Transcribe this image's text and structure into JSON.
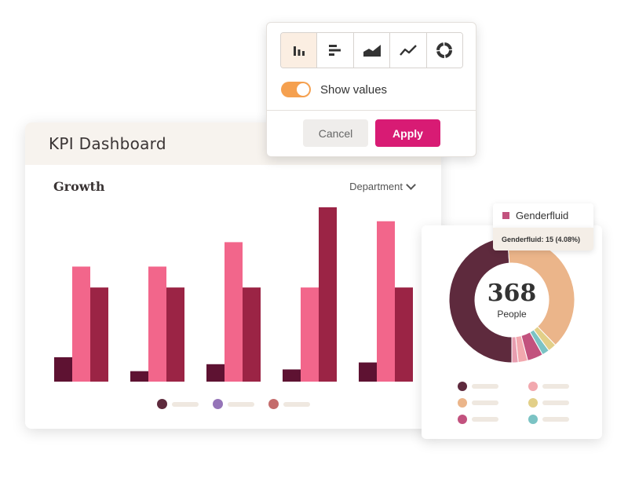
{
  "dashboard": {
    "title": "KPI Dashboard",
    "chart_title": "Growth",
    "filter_label": "Department"
  },
  "popover": {
    "chart_types": [
      {
        "name": "column",
        "icon": "column-chart-icon",
        "active": true
      },
      {
        "name": "bar",
        "icon": "bar-chart-icon",
        "active": false
      },
      {
        "name": "area",
        "icon": "area-chart-icon",
        "active": false
      },
      {
        "name": "line",
        "icon": "line-chart-icon",
        "active": false
      },
      {
        "name": "donut",
        "icon": "donut-chart-icon",
        "active": false
      }
    ],
    "toggle_label": "Show values",
    "toggle_on": true,
    "cancel_label": "Cancel",
    "apply_label": "Apply"
  },
  "donut_card": {
    "total": "368",
    "total_label": "People",
    "legend_colors": [
      "#5e2a3d",
      "#f2a8ae",
      "#ebb58a",
      "#e2cf88",
      "#c2527e",
      "#7bc3c4"
    ]
  },
  "tooltip": {
    "label": "Genderfluid",
    "detail": "Genderfluid: 15 (4.08%)"
  },
  "colors": {
    "accent": "#d81b74",
    "toggle": "#f5a04f",
    "header_bg": "#f7f3ee"
  },
  "chart_data": [
    {
      "type": "bar",
      "title": "Growth",
      "categories": [
        "",
        "",
        "",
        "",
        ""
      ],
      "series": [
        {
          "color": "#5e1232",
          "values": [
            14,
            6,
            10,
            7,
            11
          ]
        },
        {
          "color": "#f2668b",
          "values": [
            66,
            66,
            80,
            54,
            92
          ]
        },
        {
          "color": "#9b2445",
          "values": [
            54,
            54,
            54,
            54,
            54
          ]
        }
      ],
      "extra_bar": {
        "category_index": 3,
        "series_index": 2,
        "value": 100
      },
      "ylim": [
        0,
        100
      ],
      "legend_colors": [
        "#5e2a3d",
        "#9574b8",
        "#c46b6b"
      ],
      "grid": false
    },
    {
      "type": "pie",
      "donut": true,
      "slices": [
        {
          "label": "",
          "value": 180,
          "color": "#5e2a3d"
        },
        {
          "label": "",
          "value": 143,
          "color": "#ebb58a"
        },
        {
          "label": "",
          "value": 8,
          "color": "#e2cf88"
        },
        {
          "label": "",
          "value": 7,
          "color": "#7bc3c4"
        },
        {
          "label": "Genderfluid",
          "value": 15,
          "color": "#c2527e"
        },
        {
          "label": "",
          "value": 9,
          "color": "#f2a8ae"
        },
        {
          "label": "",
          "value": 6,
          "color": "#e89eb0"
        }
      ],
      "total": 368
    }
  ]
}
